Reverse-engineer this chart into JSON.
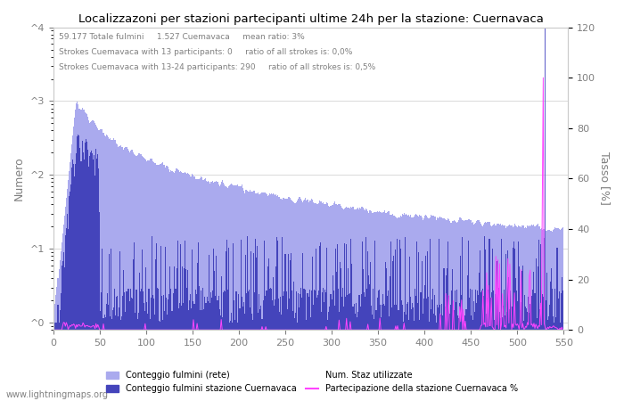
{
  "title": "Localizzazoni per stazioni partecipanti ultime 24h per la stazione: Cuernavaca",
  "ylabel_left": "Numero",
  "ylabel_right": "Tasso [%]",
  "annotation_line1": "59.177 Totale fulmini     1.527 Cuemavaca     mean ratio: 3%",
  "annotation_line2": "Strokes Cuemavaca with 13 participants: 0     ratio of all strokes is: 0,0%",
  "annotation_line3": "Strokes Cuemavaca with 13-24 participants: 290     ratio of all strokes is: 0,5%",
  "xlim": [
    0,
    555
  ],
  "ylim_left": [
    0.8,
    10000
  ],
  "ylim_right": [
    0,
    120
  ],
  "right_ticks": [
    0,
    20,
    40,
    60,
    80,
    100,
    120
  ],
  "x_ticks": [
    0,
    50,
    100,
    150,
    200,
    250,
    300,
    350,
    400,
    450,
    500,
    550
  ],
  "color_net": "#aaaaee",
  "color_station": "#4444bb",
  "color_participation": "#ff44ff",
  "vertical_line_x": 530,
  "legend_labels": [
    "Conteggio fulmini (rete)",
    "Conteggio fulmini stazione Cuernavaca",
    "Num. Staz utilizzate",
    "Partecipazione della stazione Cuernavaca %"
  ],
  "watermark": "www.lightningmaps.org",
  "num_stations": 550
}
